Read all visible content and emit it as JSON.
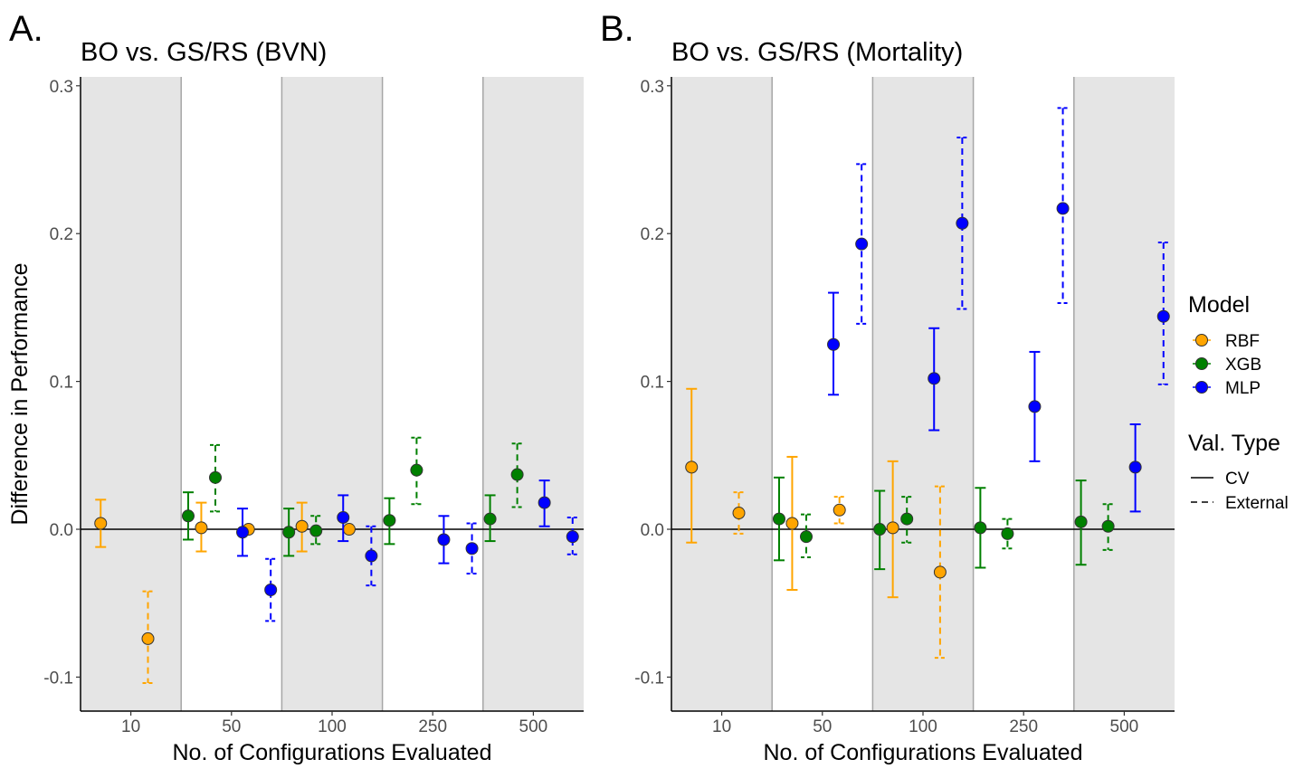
{
  "chart_data": [
    {
      "type": "scatter",
      "panel_label": "A.",
      "title": "BO vs. GS/RS (BVN)",
      "xlabel": "No. of Configurations Evaluated",
      "ylabel": "Difference in Performance",
      "categories": [
        "10",
        "50",
        "100",
        "250",
        "500"
      ],
      "ylim": [
        -0.123,
        0.306
      ],
      "yticks": [
        -0.1,
        0.0,
        0.1,
        0.2,
        0.3
      ],
      "ytick_labels": [
        "-0.1",
        "0.0",
        "0.1",
        "0.2",
        "0.3"
      ],
      "reference_line": 0,
      "series": [
        {
          "name": "RBF",
          "color": "#FFA500",
          "points": [
            {
              "category": "10",
              "val_type": "CV",
              "value": 0.004,
              "lower": -0.012,
              "upper": 0.02
            },
            {
              "category": "10",
              "val_type": "External",
              "value": -0.074,
              "lower": -0.104,
              "upper": -0.042
            },
            {
              "category": "50",
              "val_type": "CV",
              "value": 0.001,
              "lower": -0.015,
              "upper": 0.018
            },
            {
              "category": "50",
              "val_type": "External",
              "value": 0.0,
              "lower": null,
              "upper": null
            },
            {
              "category": "100",
              "val_type": "CV",
              "value": 0.002,
              "lower": -0.015,
              "upper": 0.018
            },
            {
              "category": "100",
              "val_type": "External",
              "value": 0.0,
              "lower": null,
              "upper": null
            }
          ]
        },
        {
          "name": "XGB",
          "color": "#008000",
          "points": [
            {
              "category": "50",
              "val_type": "CV",
              "value": 0.009,
              "lower": -0.007,
              "upper": 0.025
            },
            {
              "category": "50",
              "val_type": "External",
              "value": 0.035,
              "lower": 0.012,
              "upper": 0.057
            },
            {
              "category": "100",
              "val_type": "CV",
              "value": -0.002,
              "lower": -0.018,
              "upper": 0.014
            },
            {
              "category": "100",
              "val_type": "External",
              "value": -0.001,
              "lower": -0.01,
              "upper": 0.009
            },
            {
              "category": "250",
              "val_type": "CV",
              "value": 0.006,
              "lower": -0.01,
              "upper": 0.021
            },
            {
              "category": "250",
              "val_type": "External",
              "value": 0.04,
              "lower": 0.017,
              "upper": 0.062
            },
            {
              "category": "500",
              "val_type": "CV",
              "value": 0.007,
              "lower": -0.008,
              "upper": 0.023
            },
            {
              "category": "500",
              "val_type": "External",
              "value": 0.037,
              "lower": 0.015,
              "upper": 0.058
            }
          ]
        },
        {
          "name": "MLP",
          "color": "#0000FF",
          "points": [
            {
              "category": "50",
              "val_type": "CV",
              "value": -0.002,
              "lower": -0.018,
              "upper": 0.014
            },
            {
              "category": "50",
              "val_type": "External",
              "value": -0.041,
              "lower": -0.062,
              "upper": -0.02
            },
            {
              "category": "100",
              "val_type": "CV",
              "value": 0.008,
              "lower": -0.008,
              "upper": 0.023
            },
            {
              "category": "100",
              "val_type": "External",
              "value": -0.018,
              "lower": -0.038,
              "upper": 0.002
            },
            {
              "category": "250",
              "val_type": "CV",
              "value": -0.007,
              "lower": -0.023,
              "upper": 0.009
            },
            {
              "category": "250",
              "val_type": "External",
              "value": -0.013,
              "lower": -0.03,
              "upper": 0.004
            },
            {
              "category": "500",
              "val_type": "CV",
              "value": 0.018,
              "lower": 0.002,
              "upper": 0.033
            },
            {
              "category": "500",
              "val_type": "External",
              "value": -0.005,
              "lower": -0.017,
              "upper": 0.008
            }
          ]
        }
      ]
    },
    {
      "type": "scatter",
      "panel_label": "B.",
      "title": "BO vs. GS/RS (Mortality)",
      "xlabel": "No. of Configurations Evaluated",
      "ylabel": "",
      "categories": [
        "10",
        "50",
        "100",
        "250",
        "500"
      ],
      "ylim": [
        -0.123,
        0.306
      ],
      "yticks": [
        -0.1,
        0.0,
        0.1,
        0.2,
        0.3
      ],
      "ytick_labels": [
        "-0.1",
        "0.0",
        "0.1",
        "0.2",
        "0.3"
      ],
      "reference_line": 0,
      "series": [
        {
          "name": "RBF",
          "color": "#FFA500",
          "points": [
            {
              "category": "10",
              "val_type": "CV",
              "value": 0.042,
              "lower": -0.009,
              "upper": 0.095
            },
            {
              "category": "10",
              "val_type": "External",
              "value": 0.011,
              "lower": -0.003,
              "upper": 0.025
            },
            {
              "category": "50",
              "val_type": "CV",
              "value": 0.004,
              "lower": -0.041,
              "upper": 0.049
            },
            {
              "category": "50",
              "val_type": "External",
              "value": 0.013,
              "lower": 0.004,
              "upper": 0.022
            },
            {
              "category": "100",
              "val_type": "CV",
              "value": 0.001,
              "lower": -0.046,
              "upper": 0.046
            },
            {
              "category": "100",
              "val_type": "External",
              "value": -0.029,
              "lower": -0.087,
              "upper": 0.029
            }
          ]
        },
        {
          "name": "XGB",
          "color": "#008000",
          "points": [
            {
              "category": "50",
              "val_type": "CV",
              "value": 0.007,
              "lower": -0.021,
              "upper": 0.035
            },
            {
              "category": "50",
              "val_type": "External",
              "value": -0.005,
              "lower": -0.019,
              "upper": 0.01
            },
            {
              "category": "100",
              "val_type": "CV",
              "value": 0.0,
              "lower": -0.027,
              "upper": 0.026
            },
            {
              "category": "100",
              "val_type": "External",
              "value": 0.007,
              "lower": -0.009,
              "upper": 0.022
            },
            {
              "category": "250",
              "val_type": "CV",
              "value": 0.001,
              "lower": -0.026,
              "upper": 0.028
            },
            {
              "category": "250",
              "val_type": "External",
              "value": -0.003,
              "lower": -0.013,
              "upper": 0.007
            },
            {
              "category": "500",
              "val_type": "CV",
              "value": 0.005,
              "lower": -0.024,
              "upper": 0.033
            },
            {
              "category": "500",
              "val_type": "External",
              "value": 0.002,
              "lower": -0.014,
              "upper": 0.017
            }
          ]
        },
        {
          "name": "MLP",
          "color": "#0000FF",
          "points": [
            {
              "category": "50",
              "val_type": "CV",
              "value": 0.125,
              "lower": 0.091,
              "upper": 0.16
            },
            {
              "category": "50",
              "val_type": "External",
              "value": 0.193,
              "lower": 0.139,
              "upper": 0.247
            },
            {
              "category": "100",
              "val_type": "CV",
              "value": 0.102,
              "lower": 0.067,
              "upper": 0.136
            },
            {
              "category": "100",
              "val_type": "External",
              "value": 0.207,
              "lower": 0.149,
              "upper": 0.265
            },
            {
              "category": "250",
              "val_type": "CV",
              "value": 0.083,
              "lower": 0.046,
              "upper": 0.12
            },
            {
              "category": "250",
              "val_type": "External",
              "value": 0.217,
              "lower": 0.153,
              "upper": 0.285
            },
            {
              "category": "500",
              "val_type": "CV",
              "value": 0.042,
              "lower": 0.012,
              "upper": 0.071
            },
            {
              "category": "500",
              "val_type": "External",
              "value": 0.144,
              "lower": 0.098,
              "upper": 0.194
            }
          ]
        }
      ]
    }
  ],
  "legend": {
    "model_title": "Model",
    "models": [
      {
        "name": "RBF",
        "color": "#FFA500"
      },
      {
        "name": "XGB",
        "color": "#008000"
      },
      {
        "name": "MLP",
        "color": "#0000FF"
      }
    ],
    "valtype_title": "Val. Type",
    "valtypes": [
      {
        "name": "CV",
        "dash": "solid"
      },
      {
        "name": "External",
        "dash": "dashed"
      }
    ]
  },
  "style": {
    "band_color": "#E5E5E5",
    "band_border_color": "#A6A6A6",
    "axis_color": "#000000",
    "tick_label_color": "#4D4D4D",
    "point_outline_color": "#333333"
  }
}
